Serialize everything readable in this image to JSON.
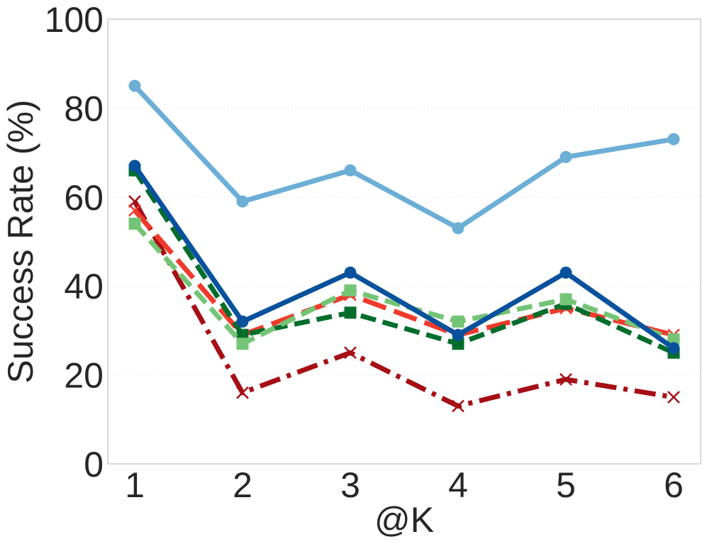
{
  "chart_data": {
    "type": "line",
    "title": "",
    "xlabel": "@K",
    "ylabel": "Success Rate (%)",
    "x": [
      1,
      2,
      3,
      4,
      5,
      6
    ],
    "xticks": [
      "1",
      "2",
      "3",
      "4",
      "5",
      "6"
    ],
    "yticks": [
      "0",
      "20",
      "40",
      "60",
      "80",
      "100"
    ],
    "ylim": [
      0,
      100
    ],
    "grid": true,
    "legend": "none",
    "series": [
      {
        "values": [
          59,
          16,
          25,
          13,
          19,
          15
        ],
        "color": "#a50f15",
        "dash": "dashdot",
        "marker": "x"
      },
      {
        "values": [
          57,
          29,
          38,
          29,
          35,
          29
        ],
        "color": "#ef3b2c",
        "dash": "longdash",
        "marker": "x"
      },
      {
        "values": [
          66,
          29,
          34,
          27,
          36,
          25
        ],
        "color": "#006d2c",
        "dash": "dashed",
        "marker": "square"
      },
      {
        "values": [
          54,
          27,
          39,
          32,
          37,
          28
        ],
        "color": "#74c476",
        "dash": "dashed",
        "marker": "square"
      },
      {
        "values": [
          67,
          32,
          43,
          29,
          43,
          26
        ],
        "color": "#08519c",
        "dash": "solid",
        "marker": "circle"
      },
      {
        "values": [
          85,
          59,
          66,
          53,
          69,
          73
        ],
        "color": "#6baed6",
        "dash": "solid",
        "marker": "circle"
      }
    ]
  }
}
